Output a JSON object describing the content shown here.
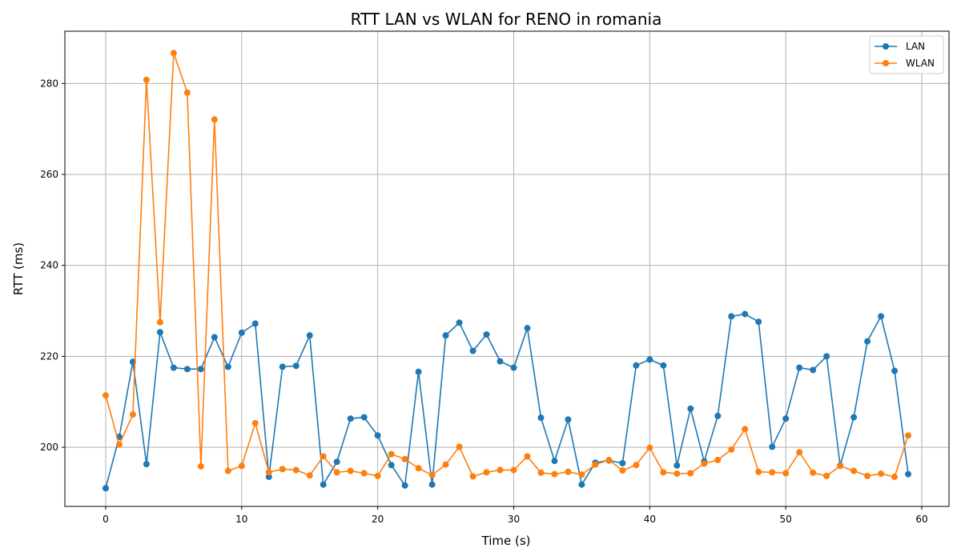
{
  "chart_data": {
    "type": "line",
    "title": "RTT LAN vs WLAN for RENO in romania",
    "xlabel": "Time (s)",
    "ylabel": "RTT (ms)",
    "xlim": [
      -3,
      62
    ],
    "ylim": [
      187,
      291.5
    ],
    "xticks": [
      0,
      10,
      20,
      30,
      40,
      50,
      60
    ],
    "yticks": [
      200,
      220,
      240,
      260,
      280
    ],
    "grid": true,
    "legend_position": "top-right",
    "series": [
      {
        "name": "LAN",
        "color": "#1f77b4",
        "x": [
          0,
          1,
          2,
          3,
          4,
          5,
          6,
          7,
          8,
          9,
          10,
          11,
          12,
          13,
          14,
          15,
          16,
          17,
          18,
          19,
          20,
          21,
          22,
          23,
          24,
          25,
          26,
          27,
          28,
          29,
          30,
          31,
          32,
          33,
          34,
          35,
          36,
          37,
          38,
          39,
          40,
          41,
          42,
          43,
          44,
          45,
          46,
          47,
          48,
          49,
          50,
          51,
          52,
          53,
          54,
          55,
          56,
          57,
          58,
          59
        ],
        "values": [
          191.0,
          202.3,
          218.8,
          196.3,
          225.3,
          217.5,
          217.2,
          217.2,
          224.2,
          217.7,
          225.2,
          227.2,
          193.5,
          217.7,
          217.9,
          224.6,
          191.8,
          196.8,
          206.3,
          206.6,
          202.6,
          196.1,
          191.6,
          216.6,
          191.8,
          224.6,
          227.4,
          221.2,
          224.8,
          218.9,
          217.5,
          226.2,
          206.5,
          197.0,
          206.1,
          191.8,
          196.6,
          197.1,
          196.5,
          218.0,
          219.3,
          218.0,
          196.0,
          208.5,
          196.9,
          206.9,
          228.8,
          229.3,
          227.6,
          200.1,
          206.3,
          217.5,
          217.0,
          220.0,
          196.0,
          206.6,
          223.3,
          228.8,
          216.8,
          194.1
        ]
      },
      {
        "name": "WLAN",
        "color": "#ff7f0e",
        "x": [
          0,
          1,
          2,
          3,
          4,
          5,
          6,
          7,
          8,
          9,
          10,
          11,
          12,
          13,
          14,
          15,
          16,
          17,
          18,
          19,
          20,
          21,
          22,
          23,
          24,
          25,
          26,
          27,
          28,
          29,
          30,
          31,
          32,
          33,
          34,
          35,
          36,
          37,
          38,
          39,
          40,
          41,
          42,
          43,
          44,
          45,
          46,
          47,
          48,
          49,
          50,
          51,
          52,
          53,
          54,
          55,
          56,
          57,
          58,
          59
        ],
        "values": [
          211.4,
          200.6,
          207.2,
          280.8,
          227.5,
          286.7,
          278.0,
          195.8,
          272.1,
          194.8,
          195.9,
          205.3,
          194.5,
          195.2,
          195.0,
          193.8,
          198.0,
          194.5,
          194.8,
          194.3,
          193.7,
          198.5,
          197.4,
          195.4,
          193.9,
          196.2,
          200.1,
          193.6,
          194.5,
          195.0,
          195.0,
          198.0,
          194.4,
          194.1,
          194.6,
          194.0,
          196.2,
          197.2,
          194.9,
          196.1,
          199.9,
          194.5,
          194.2,
          194.3,
          196.4,
          197.2,
          199.5,
          204.0,
          194.6,
          194.5,
          194.3,
          198.9,
          194.4,
          193.7,
          195.9,
          194.8,
          193.7,
          194.2,
          193.5,
          202.6
        ]
      }
    ]
  }
}
